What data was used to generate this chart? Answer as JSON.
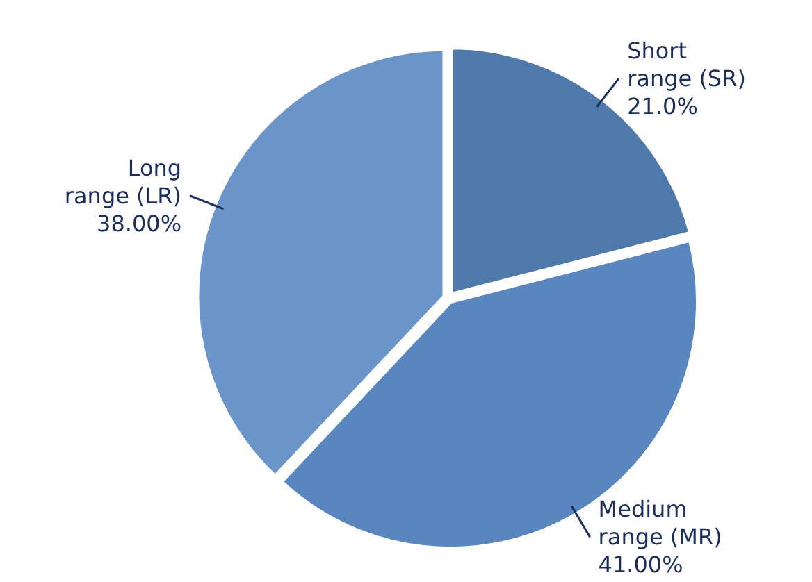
{
  "chart_data": {
    "type": "pie",
    "categories": [
      "Short range (SR)",
      "Medium range (MR)",
      "Long range (LR)"
    ],
    "values": [
      21,
      41,
      38
    ],
    "value_labels": [
      "21.0%",
      "41.00%",
      "38.00%"
    ],
    "colors": [
      "#4f78ab",
      "#5a86bf",
      "#6b95c9"
    ]
  }
}
